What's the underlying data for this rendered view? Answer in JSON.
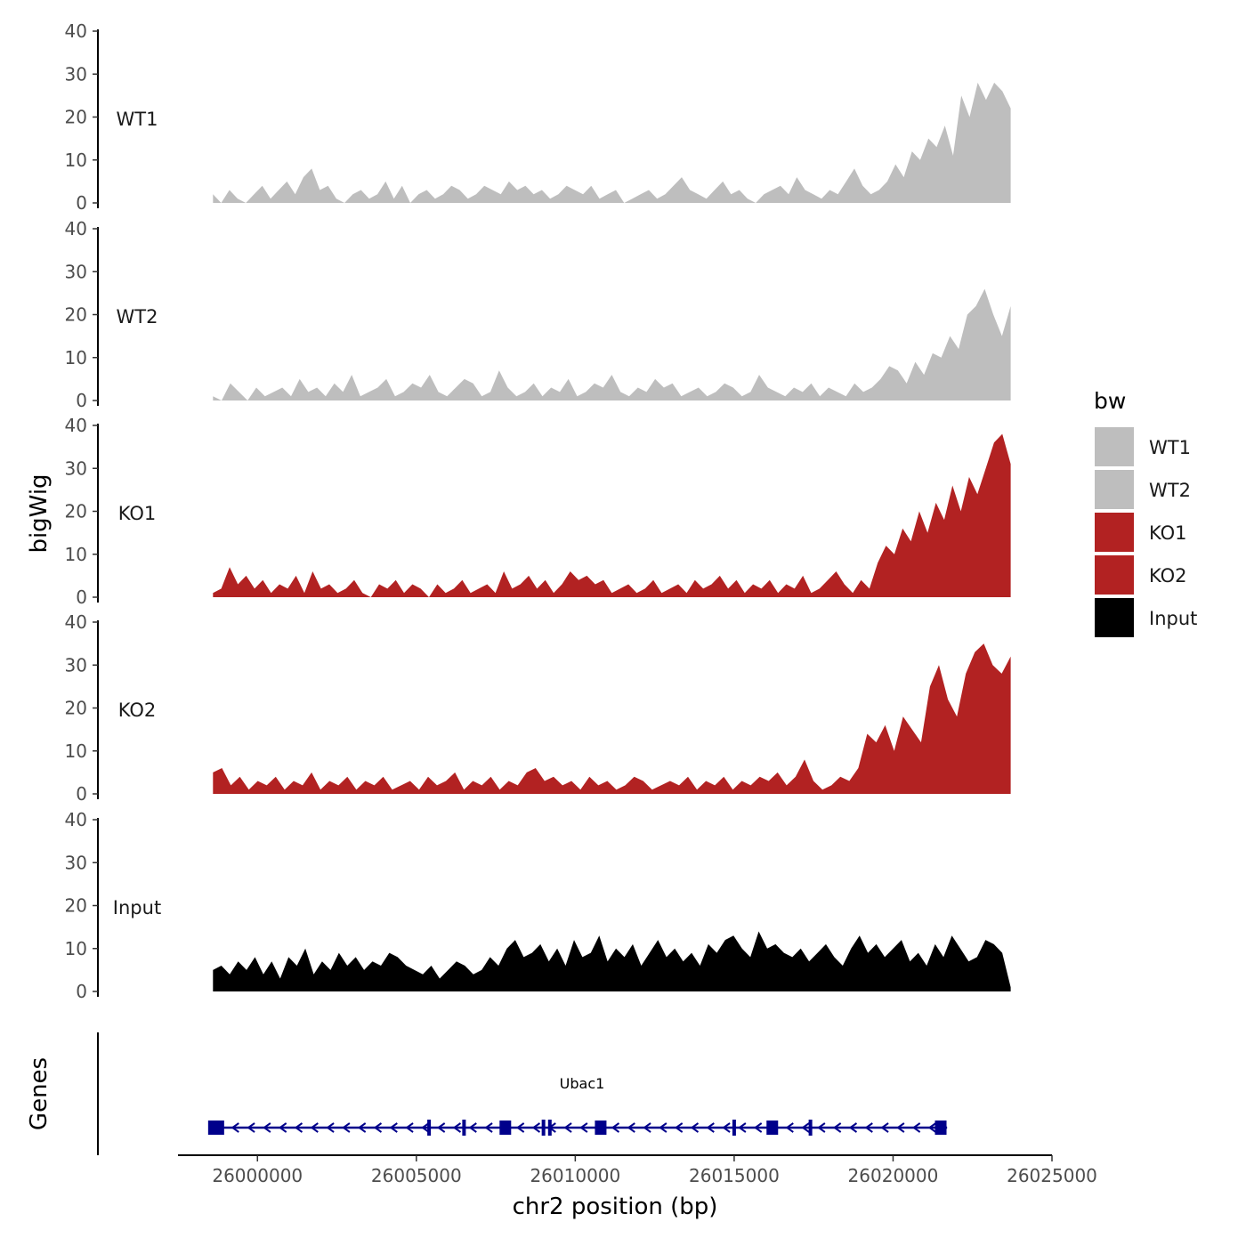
{
  "chart_data": {
    "type": "area",
    "ylabel": "bigWig",
    "xlabel": "chr2 position (bp)",
    "xlim": [
      25997500,
      26025000
    ],
    "region": [
      25998600,
      26023700
    ],
    "ylim": [
      0,
      40
    ],
    "yticks": [
      0,
      10,
      20,
      30,
      40
    ],
    "xticks": [
      26000000,
      26005000,
      26010000,
      26015000,
      26020000,
      26025000
    ],
    "xtick_labels": [
      "26000000",
      "26005000",
      "26010000",
      "26015000",
      "26020000",
      "26025000"
    ],
    "legend": {
      "title": "bw",
      "position": "right",
      "entries": [
        {
          "label": "WT1",
          "color": "#bebebe"
        },
        {
          "label": "WT2",
          "color": "#bebebe"
        },
        {
          "label": "KO1",
          "color": "#b22222"
        },
        {
          "label": "KO2",
          "color": "#b22222"
        },
        {
          "label": "Input",
          "color": "#000000"
        }
      ]
    },
    "series": [
      {
        "name": "WT1",
        "color": "#bebebe",
        "values": [
          2,
          0,
          3,
          1,
          0,
          2,
          4,
          1,
          3,
          5,
          2,
          6,
          8,
          3,
          4,
          1,
          0,
          2,
          3,
          1,
          2,
          5,
          1,
          4,
          0,
          2,
          3,
          1,
          2,
          4,
          3,
          1,
          2,
          4,
          3,
          2,
          5,
          3,
          4,
          2,
          3,
          1,
          2,
          4,
          3,
          2,
          4,
          1,
          2,
          3,
          0,
          1,
          2,
          3,
          1,
          2,
          4,
          6,
          3,
          2,
          1,
          3,
          5,
          2,
          3,
          1,
          0,
          2,
          3,
          4,
          2,
          6,
          3,
          2,
          1,
          3,
          2,
          5,
          8,
          4,
          2,
          3,
          5,
          9,
          6,
          12,
          10,
          15,
          13,
          18,
          11,
          25,
          20,
          28,
          24,
          28,
          26,
          22
        ]
      },
      {
        "name": "WT2",
        "color": "#bebebe",
        "values": [
          1,
          0,
          4,
          2,
          0,
          3,
          1,
          2,
          3,
          1,
          5,
          2,
          3,
          1,
          4,
          2,
          6,
          1,
          2,
          3,
          5,
          1,
          2,
          4,
          3,
          6,
          2,
          1,
          3,
          5,
          4,
          1,
          2,
          7,
          3,
          1,
          2,
          4,
          1,
          3,
          2,
          5,
          1,
          2,
          4,
          3,
          6,
          2,
          1,
          3,
          2,
          5,
          3,
          4,
          1,
          2,
          3,
          1,
          2,
          4,
          3,
          1,
          2,
          6,
          3,
          2,
          1,
          3,
          2,
          4,
          1,
          3,
          2,
          1,
          4,
          2,
          3,
          5,
          8,
          7,
          4,
          9,
          6,
          11,
          10,
          15,
          12,
          20,
          22,
          26,
          20,
          15,
          22
        ]
      },
      {
        "name": "KO1",
        "color": "#b22222",
        "values": [
          1,
          2,
          7,
          3,
          5,
          2,
          4,
          1,
          3,
          2,
          5,
          1,
          6,
          2,
          3,
          1,
          2,
          4,
          1,
          0,
          3,
          2,
          4,
          1,
          3,
          2,
          0,
          3,
          1,
          2,
          4,
          1,
          2,
          3,
          1,
          6,
          2,
          3,
          5,
          2,
          4,
          1,
          3,
          6,
          4,
          5,
          3,
          4,
          1,
          2,
          3,
          1,
          2,
          4,
          1,
          2,
          3,
          1,
          4,
          2,
          3,
          5,
          2,
          4,
          1,
          3,
          2,
          4,
          1,
          3,
          2,
          5,
          1,
          2,
          4,
          6,
          3,
          1,
          4,
          2,
          8,
          12,
          10,
          16,
          13,
          20,
          15,
          22,
          18,
          26,
          20,
          28,
          24,
          30,
          36,
          38,
          31
        ]
      },
      {
        "name": "KO2",
        "color": "#b22222",
        "values": [
          5,
          6,
          2,
          4,
          1,
          3,
          2,
          4,
          1,
          3,
          2,
          5,
          1,
          3,
          2,
          4,
          1,
          3,
          2,
          4,
          1,
          2,
          3,
          1,
          4,
          2,
          3,
          5,
          1,
          3,
          2,
          4,
          1,
          3,
          2,
          5,
          6,
          3,
          4,
          2,
          3,
          1,
          4,
          2,
          3,
          1,
          2,
          4,
          3,
          1,
          2,
          3,
          2,
          4,
          1,
          3,
          2,
          4,
          1,
          3,
          2,
          4,
          3,
          5,
          2,
          4,
          8,
          3,
          1,
          2,
          4,
          3,
          6,
          14,
          12,
          16,
          10,
          18,
          15,
          12,
          25,
          30,
          22,
          18,
          28,
          33,
          35,
          30,
          28,
          32
        ]
      },
      {
        "name": "Input",
        "color": "#000000",
        "values": [
          5,
          6,
          4,
          7,
          5,
          8,
          4,
          7,
          3,
          8,
          6,
          10,
          4,
          7,
          5,
          9,
          6,
          8,
          5,
          7,
          6,
          9,
          8,
          6,
          5,
          4,
          6,
          3,
          5,
          7,
          6,
          4,
          5,
          8,
          6,
          10,
          12,
          8,
          9,
          11,
          7,
          10,
          6,
          12,
          8,
          9,
          13,
          7,
          10,
          8,
          11,
          6,
          9,
          12,
          8,
          10,
          7,
          9,
          6,
          11,
          9,
          12,
          13,
          10,
          8,
          14,
          10,
          11,
          9,
          8,
          10,
          7,
          9,
          11,
          8,
          6,
          10,
          13,
          9,
          11,
          8,
          10,
          12,
          7,
          9,
          6,
          11,
          8,
          13,
          10,
          7,
          8,
          12,
          11,
          9,
          1
        ]
      }
    ],
    "gene_track": {
      "label": "Genes",
      "gene_name": "Ubac1",
      "strand": "-",
      "start": 25998600,
      "end": 26021700,
      "exons": [
        25998700,
        26005400,
        26006500,
        26007800,
        26009000,
        26009200,
        26010800,
        26015000,
        26016200,
        26017400,
        26021500
      ]
    }
  }
}
